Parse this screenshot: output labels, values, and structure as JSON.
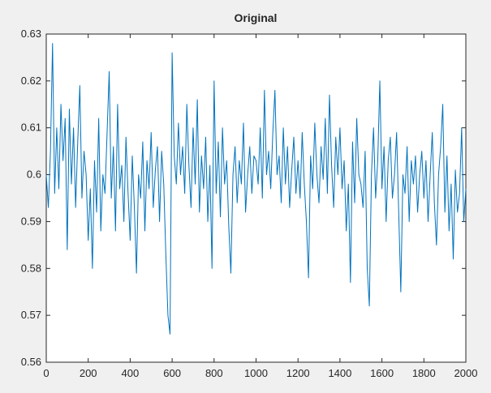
{
  "chart_data": {
    "type": "line",
    "title": "Original",
    "x": [
      0,
      10,
      20,
      30,
      40,
      50,
      60,
      70,
      80,
      90,
      100,
      110,
      120,
      130,
      140,
      150,
      160,
      170,
      180,
      190,
      200,
      210,
      220,
      230,
      240,
      250,
      260,
      270,
      280,
      290,
      300,
      310,
      320,
      330,
      340,
      350,
      360,
      370,
      380,
      390,
      400,
      410,
      420,
      430,
      440,
      450,
      460,
      470,
      480,
      490,
      500,
      510,
      520,
      530,
      540,
      550,
      560,
      570,
      580,
      590,
      600,
      610,
      620,
      630,
      640,
      650,
      660,
      670,
      680,
      690,
      700,
      710,
      720,
      730,
      740,
      750,
      760,
      770,
      780,
      790,
      800,
      810,
      820,
      830,
      840,
      850,
      860,
      870,
      880,
      890,
      900,
      910,
      920,
      930,
      940,
      950,
      960,
      970,
      980,
      990,
      1000,
      1010,
      1020,
      1030,
      1040,
      1050,
      1060,
      1070,
      1080,
      1090,
      1100,
      1110,
      1120,
      1130,
      1140,
      1150,
      1160,
      1170,
      1180,
      1190,
      1200,
      1210,
      1220,
      1230,
      1240,
      1250,
      1260,
      1270,
      1280,
      1290,
      1300,
      1310,
      1320,
      1330,
      1340,
      1350,
      1360,
      1370,
      1380,
      1390,
      1400,
      1410,
      1420,
      1430,
      1440,
      1450,
      1460,
      1470,
      1480,
      1490,
      1500,
      1510,
      1520,
      1530,
      1540,
      1550,
      1560,
      1570,
      1580,
      1590,
      1600,
      1610,
      1620,
      1630,
      1640,
      1650,
      1660,
      1670,
      1680,
      1690,
      1700,
      1710,
      1720,
      1730,
      1740,
      1750,
      1760,
      1770,
      1780,
      1790,
      1800,
      1810,
      1820,
      1830,
      1840,
      1850,
      1860,
      1870,
      1880,
      1890,
      1900,
      1910,
      1920,
      1930,
      1940,
      1950,
      1960,
      1970,
      1980,
      1990,
      2000
    ],
    "series": [
      {
        "color": "#0072bd",
        "values": [
          0.6,
          0.593,
          0.605,
          0.628,
          0.596,
          0.61,
          0.597,
          0.615,
          0.603,
          0.612,
          0.584,
          0.614,
          0.598,
          0.61,
          0.593,
          0.607,
          0.619,
          0.595,
          0.605,
          0.6,
          0.586,
          0.597,
          0.58,
          0.603,
          0.592,
          0.612,
          0.588,
          0.6,
          0.596,
          0.609,
          0.622,
          0.595,
          0.606,
          0.588,
          0.615,
          0.597,
          0.602,
          0.59,
          0.608,
          0.596,
          0.586,
          0.604,
          0.593,
          0.579,
          0.6,
          0.595,
          0.607,
          0.588,
          0.603,
          0.597,
          0.609,
          0.593,
          0.601,
          0.606,
          0.59,
          0.605,
          0.598,
          0.583,
          0.57,
          0.566,
          0.626,
          0.604,
          0.598,
          0.611,
          0.6,
          0.606,
          0.596,
          0.615,
          0.602,
          0.593,
          0.61,
          0.598,
          0.616,
          0.592,
          0.604,
          0.597,
          0.608,
          0.59,
          0.602,
          0.58,
          0.62,
          0.596,
          0.607,
          0.591,
          0.61,
          0.598,
          0.603,
          0.589,
          0.579,
          0.6,
          0.606,
          0.594,
          0.603,
          0.598,
          0.611,
          0.592,
          0.6,
          0.606,
          0.596,
          0.604,
          0.603,
          0.598,
          0.61,
          0.595,
          0.618,
          0.6,
          0.605,
          0.597,
          0.609,
          0.618,
          0.6,
          0.604,
          0.594,
          0.61,
          0.598,
          0.606,
          0.593,
          0.601,
          0.608,
          0.596,
          0.603,
          0.595,
          0.609,
          0.598,
          0.59,
          0.578,
          0.604,
          0.597,
          0.611,
          0.6,
          0.594,
          0.606,
          0.599,
          0.612,
          0.596,
          0.617,
          0.602,
          0.593,
          0.608,
          0.6,
          0.61,
          0.597,
          0.603,
          0.588,
          0.598,
          0.577,
          0.607,
          0.594,
          0.612,
          0.6,
          0.598,
          0.593,
          0.605,
          0.58,
          0.572,
          0.6,
          0.61,
          0.595,
          0.603,
          0.62,
          0.597,
          0.606,
          0.59,
          0.603,
          0.608,
          0.595,
          0.6,
          0.609,
          0.592,
          0.575,
          0.6,
          0.596,
          0.606,
          0.59,
          0.603,
          0.598,
          0.604,
          0.592,
          0.6,
          0.605,
          0.595,
          0.603,
          0.59,
          0.6,
          0.609,
          0.594,
          0.585,
          0.6,
          0.606,
          0.615,
          0.592,
          0.604,
          0.588,
          0.598,
          0.582,
          0.601,
          0.592,
          0.596,
          0.61,
          0.59,
          0.597
        ]
      }
    ],
    "xlim": [
      0,
      2000
    ],
    "ylim": [
      0.56,
      0.63
    ],
    "xticks": [
      0,
      200,
      400,
      600,
      800,
      1000,
      1200,
      1400,
      1600,
      1800,
      2000
    ],
    "yticks": [
      0.56,
      0.57,
      0.58,
      0.59,
      0.6,
      0.61,
      0.62,
      0.63
    ]
  }
}
